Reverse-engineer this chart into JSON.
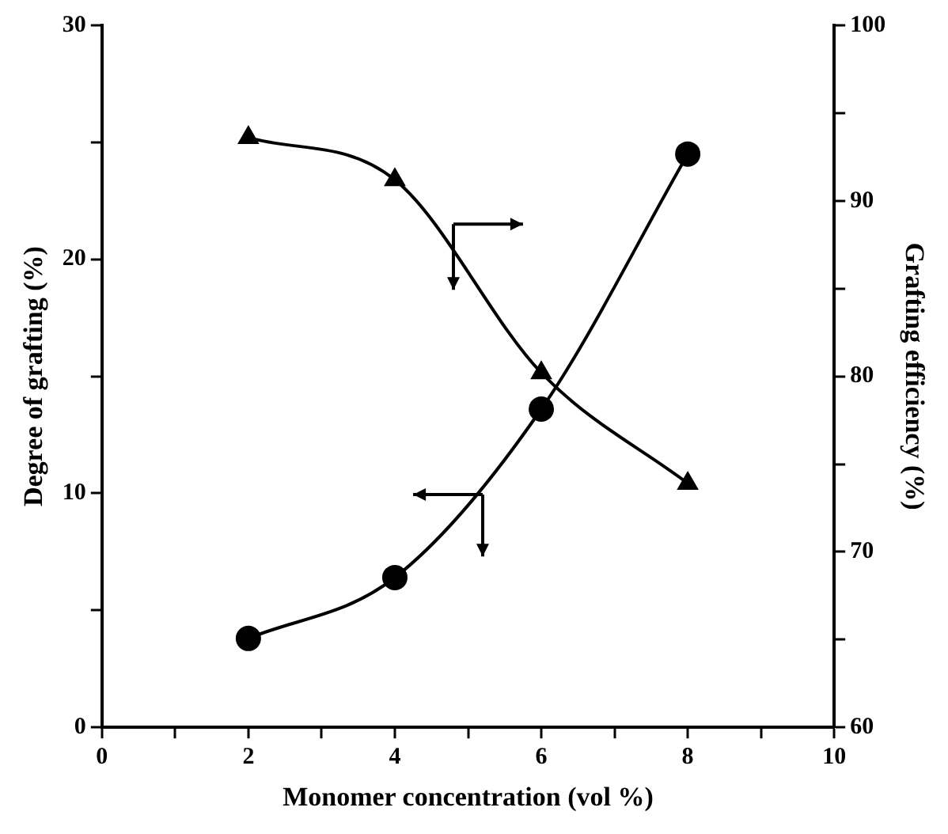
{
  "chart_data": {
    "type": "line",
    "xlabel": "Monomer concentration (vol %)",
    "ylabel": "Degree of grafting (%)",
    "y2label": "Grafting efficiency (%)",
    "x": [
      2,
      4,
      6,
      8
    ],
    "series": [
      {
        "color": "#000000",
        "marker": "circle",
        "values": [
          3.8,
          6.4,
          13.6,
          24.5
        ]
      },
      {
        "color": "#000000",
        "marker": "triangle",
        "axis": "y2",
        "values": [
          93.6,
          91.2,
          80.2,
          73.9
        ]
      }
    ],
    "xlim": [
      0,
      10
    ],
    "xticks": [
      0,
      {
        "value": 1,
        "label": null
      },
      2,
      {
        "value": 3,
        "label": null
      },
      4,
      {
        "value": 5,
        "label": null
      },
      6,
      {
        "value": 7,
        "label": null
      },
      8,
      {
        "value": 9,
        "label": null
      },
      10
    ],
    "ylim": [
      0,
      30
    ],
    "yticks": [
      0,
      {
        "value": 5,
        "label": null
      },
      10,
      {
        "value": 15,
        "label": null
      },
      20,
      {
        "value": 25,
        "label": null
      },
      30
    ],
    "y2lim": [
      60,
      100
    ],
    "y2ticks": [
      60,
      {
        "value": 65,
        "label": null
      },
      70,
      {
        "value": 75,
        "label": null
      },
      80,
      {
        "value": 85,
        "label": null
      },
      90,
      {
        "value": 95,
        "label": null
      },
      100
    ],
    "grid": false,
    "legend": false,
    "line_style": "solid"
  }
}
